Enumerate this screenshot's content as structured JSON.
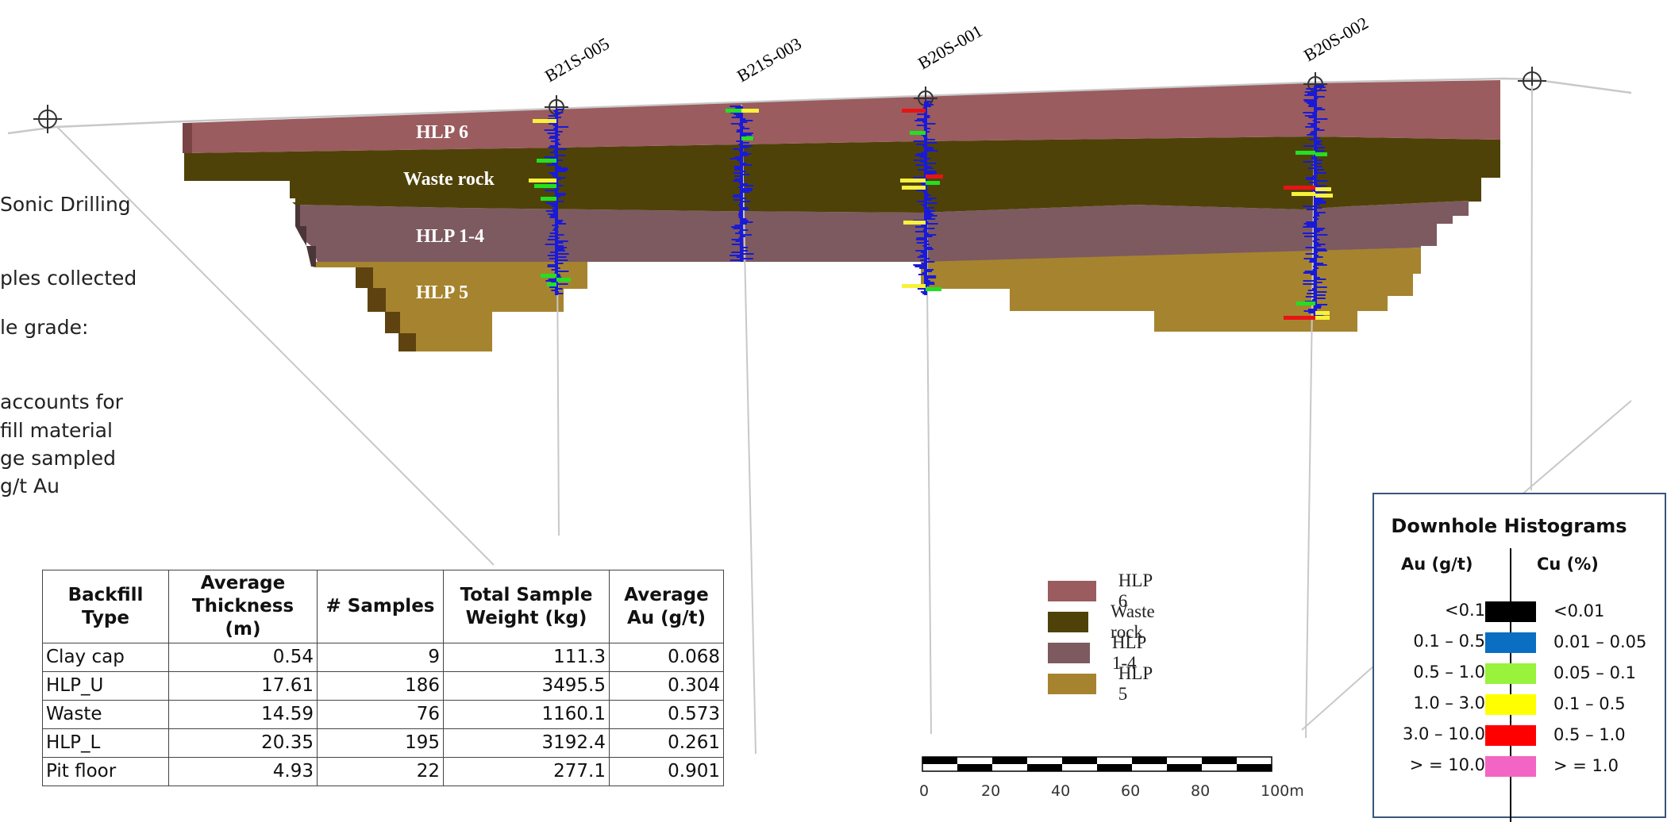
{
  "drillholes": [
    "B21S-005",
    "B21S-003",
    "B20S-001",
    "B20S-002"
  ],
  "sections": [
    "HLP 6",
    "Waste rock",
    "HLP 1-4",
    "HLP 5"
  ],
  "left_text": [
    "Sonic Drilling",
    "ples collected",
    "le grade:",
    " accounts for",
    "fill material",
    "ge sampled",
    "g/t Au"
  ],
  "table": {
    "headers": [
      [
        "Backfill",
        "Type"
      ],
      [
        "Average",
        "Thickness (m)"
      ],
      [
        "# Samples"
      ],
      [
        "Total Sample",
        "Weight (kg)"
      ],
      [
        "Average",
        "Au (g/t)"
      ]
    ],
    "rows": [
      [
        "Clay cap",
        "0.54",
        "9",
        "111.3",
        "0.068"
      ],
      [
        "HLP_U",
        "17.61",
        "186",
        "3495.5",
        "0.304"
      ],
      [
        "Waste",
        "14.59",
        "76",
        "1160.1",
        "0.573"
      ],
      [
        "HLP_L",
        "20.35",
        "195",
        "3192.4",
        "0.261"
      ],
      [
        "Pit floor",
        "4.93",
        "22",
        "277.1",
        "0.901"
      ]
    ]
  },
  "legend": [
    {
      "label": "HLP 6",
      "color": "#9b5c5f"
    },
    {
      "label": "Waste rock",
      "color": "#4f4209"
    },
    {
      "label": "HLP 1-4",
      "color": "#7d5a60"
    },
    {
      "label": "HLP 5",
      "color": "#a6842f"
    }
  ],
  "histograms": {
    "title": "Downhole Histograms",
    "au_header": "Au (g/t)",
    "cu_header": "Cu (%)",
    "rows": [
      {
        "au": "<0.1",
        "cu": "<0.01",
        "color": "#000000"
      },
      {
        "au": "0.1 – 0.5",
        "cu": "0.01 – 0.05",
        "color": "#0a6ec2"
      },
      {
        "au": "0.5 – 1.0",
        "cu": "0.05 – 0.1",
        "color": "#99f23c"
      },
      {
        "au": "1.0 – 3.0",
        "cu": "0.1 – 0.5",
        "color": "#ffff00"
      },
      {
        "au": "3.0 – 10.0",
        "cu": "0.5 – 1.0",
        "color": "#ff0000"
      },
      {
        "au": "> = 10.0",
        "cu": "> = 1.0",
        "color": "#f365c4"
      }
    ]
  },
  "scale": {
    "ticks": [
      "0",
      "20",
      "40",
      "60",
      "80",
      "100m"
    ]
  },
  "colors": {
    "hlp6": "#9b5c5f",
    "waste": "#4f4209",
    "hlp14": "#7d5a60",
    "hlp5": "#a6842f",
    "trace_blue": "#1a1ad6",
    "trace_green": "#22e022",
    "trace_yellow": "#f7f23a",
    "trace_red": "#e81414"
  }
}
